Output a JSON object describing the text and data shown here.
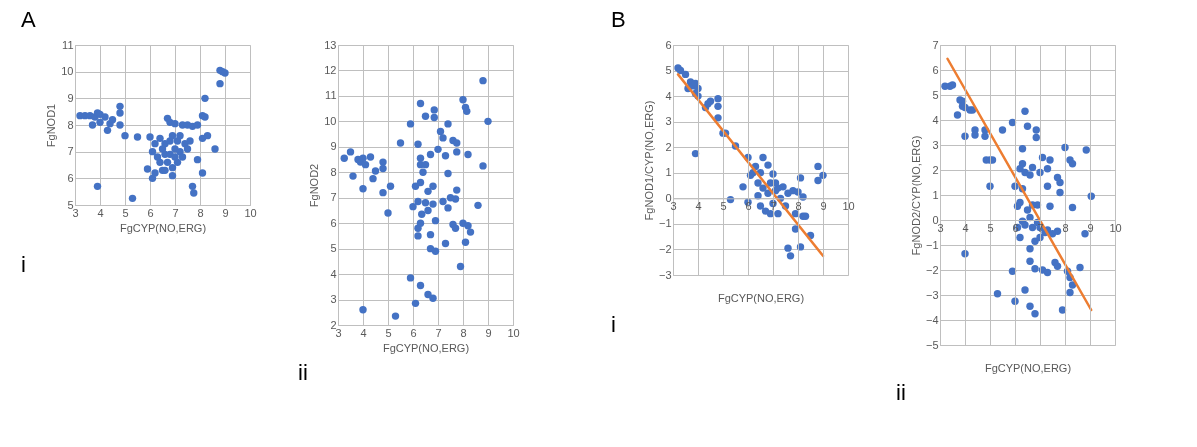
{
  "chart_data": [
    {
      "type": "scatter",
      "xlabel": "FgCYP(NO,ERG)",
      "ylabel": "FgNOD1",
      "xlim": [
        3,
        10
      ],
      "xticks": [
        3,
        4,
        5,
        6,
        7,
        8,
        9,
        10
      ],
      "ylim": [
        5,
        11
      ],
      "yticks": [
        5,
        6,
        7,
        8,
        9,
        10,
        11
      ],
      "grid": true,
      "annotations": [
        "A",
        "i"
      ],
      "series": [
        {
          "color": "#4472c4",
          "marker": "circle",
          "x": [
            3.2,
            3.4,
            3.6,
            3.8,
            3.9,
            4.0,
            3.7,
            4.0,
            4.2,
            4.3,
            4.4,
            4.5,
            4.8,
            4.8,
            4.8,
            5.0,
            5.5,
            6.0,
            3.9,
            5.3,
            5.9,
            6.1,
            6.2,
            6.1,
            6.2,
            6.3,
            6.4,
            6.4,
            6.5,
            6.5,
            6.6,
            6.6,
            6.7,
            6.8,
            6.7,
            6.8,
            6.8,
            6.9,
            6.9,
            7.0,
            7.0,
            7.0,
            7.1,
            7.1,
            7.2,
            7.2,
            7.3,
            7.3,
            7.4,
            7.5,
            7.5,
            7.6,
            7.7,
            7.7,
            7.75,
            7.9,
            7.9,
            8.1,
            8.1,
            8.1,
            8.2,
            8.3,
            8.2,
            8.6,
            8.8,
            8.8,
            8.9,
            9.0,
            6.6,
            6.9
          ],
          "values": [
            8.35,
            8.35,
            8.35,
            8.3,
            8.45,
            8.4,
            8.0,
            8.1,
            8.3,
            7.8,
            8.05,
            8.2,
            8.7,
            8.45,
            8.0,
            7.6,
            7.55,
            7.55,
            5.7,
            5.25,
            6.35,
            6.0,
            6.2,
            7.0,
            7.3,
            6.8,
            7.5,
            6.6,
            7.1,
            6.3,
            6.9,
            7.3,
            8.25,
            8.1,
            6.6,
            7.4,
            6.9,
            7.6,
            6.4,
            7.1,
            8.05,
            6.8,
            7.4,
            6.6,
            7.6,
            7.0,
            8.0,
            6.8,
            7.3,
            7.1,
            8.0,
            7.4,
            7.95,
            5.7,
            5.45,
            6.7,
            8.0,
            7.5,
            6.2,
            8.35,
            9.0,
            7.6,
            8.3,
            7.1,
            9.55,
            10.05,
            10.0,
            9.95,
            6.3,
            6.1
          ]
        }
      ]
    },
    {
      "type": "scatter",
      "xlabel": "FgCYP(NO,ERG)",
      "ylabel": "FgNOD2",
      "xlim": [
        3,
        10
      ],
      "xticks": [
        3,
        4,
        5,
        6,
        7,
        8,
        9,
        10
      ],
      "ylim": [
        2,
        13
      ],
      "yticks": [
        2,
        3,
        4,
        5,
        6,
        7,
        8,
        9,
        10,
        11,
        12,
        13
      ],
      "grid": true,
      "annotations": [
        "ii"
      ],
      "series": [
        {
          "color": "#4472c4",
          "marker": "circle",
          "x": [
            3.25,
            3.5,
            3.8,
            3.9,
            4.0,
            4.1,
            4.3,
            3.6,
            4.0,
            4.4,
            4.5,
            4.8,
            4.8,
            4.8,
            5.1,
            5.0,
            5.5,
            5.9,
            6.3,
            6.5,
            6.85,
            6.85,
            6.2,
            6.3,
            6.3,
            6.4,
            6.5,
            6.7,
            6.1,
            6.3,
            6.6,
            6.8,
            6.0,
            6.2,
            6.35,
            6.5,
            6.6,
            6.8,
            6.9,
            7.0,
            7.1,
            7.2,
            7.4,
            7.3,
            7.4,
            7.2,
            7.4,
            7.5,
            7.7,
            7.75,
            7.6,
            7.75,
            7.75,
            8.2,
            8.0,
            8.1,
            8.15,
            8.8,
            9.0,
            8.8,
            8.6,
            7.6,
            7.7,
            8.0,
            8.2,
            8.3,
            8.1,
            7.3,
            6.7,
            6.7,
            6.9,
            6.2,
            6.2,
            6.3,
            7.9,
            5.9,
            6.3,
            6.6,
            6.8,
            6.1,
            4.0,
            5.3
          ],
          "values": [
            8.55,
            8.8,
            8.5,
            8.4,
            8.55,
            8.3,
            8.6,
            7.85,
            7.35,
            7.75,
            8.05,
            8.4,
            8.15,
            7.2,
            7.45,
            6.4,
            9.15,
            9.9,
            10.7,
            10.2,
            10.45,
            10.15,
            9.1,
            8.55,
            8.3,
            8.0,
            8.3,
            8.7,
            7.45,
            7.6,
            7.25,
            7.45,
            6.65,
            6.85,
            6.35,
            6.8,
            6.5,
            6.75,
            6.1,
            8.9,
            9.6,
            9.35,
            9.9,
            8.65,
            7.95,
            6.85,
            6.6,
            7.0,
            6.95,
            7.3,
            9.25,
            9.15,
            8.8,
            8.7,
            10.85,
            10.55,
            10.4,
            11.6,
            10.0,
            8.25,
            6.7,
            5.95,
            5.8,
            6.0,
            5.9,
            5.65,
            5.25,
            5.2,
            5.55,
            5.0,
            4.9,
            5.5,
            5.8,
            6.0,
            4.3,
            3.85,
            3.55,
            3.2,
            3.05,
            2.85,
            2.6,
            2.35
          ]
        }
      ]
    },
    {
      "type": "scatter",
      "xlabel": "FgCYP(NO,ERG)",
      "ylabel": "FgNOD1/CYP(NO,ERG)",
      "xlim": [
        3,
        10
      ],
      "xticks": [
        3,
        4,
        5,
        6,
        7,
        8,
        9,
        10
      ],
      "ylim": [
        -3,
        6
      ],
      "yticks": [
        -3,
        -2,
        -1,
        0,
        1,
        2,
        3,
        4,
        5,
        6
      ],
      "grid": true,
      "annotations": [
        "B",
        "i"
      ],
      "series": [
        {
          "color": "#4472c4",
          "marker": "circle",
          "x": [
            3.2,
            3.3,
            3.5,
            3.7,
            3.6,
            3.8,
            3.9,
            4.0,
            3.9,
            4.0,
            4.3,
            4.4,
            4.5,
            4.8,
            4.8,
            4.8,
            5.0,
            5.1,
            5.5,
            6.0,
            3.9,
            5.3,
            5.8,
            6.0,
            6.1,
            6.2,
            6.3,
            6.4,
            6.5,
            6.4,
            6.5,
            6.6,
            6.6,
            6.8,
            6.8,
            6.7,
            6.9,
            7.0,
            7.0,
            7.1,
            7.2,
            7.2,
            7.3,
            7.4,
            7.5,
            7.6,
            7.8,
            7.9,
            8.0,
            8.1,
            8.2,
            8.2,
            8.3,
            7.9,
            8.1,
            8.5,
            7.6,
            7.7,
            8.8,
            8.8,
            9.0,
            6.9,
            7.1
          ],
          "values": [
            5.1,
            5.0,
            4.85,
            4.55,
            4.3,
            4.4,
            4.5,
            4.3,
            4.1,
            4.0,
            3.55,
            3.7,
            3.8,
            3.9,
            3.6,
            3.15,
            2.55,
            2.55,
            2.05,
            1.6,
            1.75,
            -0.05,
            0.45,
            -0.15,
            0.9,
            1.0,
            1.25,
            0.6,
            1.0,
            0.1,
            -0.3,
            0.4,
            1.6,
            1.3,
            0.2,
            -0.5,
            0.6,
            0.95,
            -0.2,
            0.3,
            -0.6,
            0.4,
            0.0,
            0.45,
            -0.3,
            0.2,
            0.3,
            -0.6,
            0.25,
            0.8,
            0.05,
            -0.7,
            -0.7,
            -1.2,
            -1.9,
            -1.45,
            -1.95,
            -2.25,
            0.7,
            1.25,
            0.9,
            -0.6,
            0.6
          ]
        },
        {
          "type": "line",
          "color": "#ed7d31",
          "x": [
            3.2,
            9.0
          ],
          "values": [
            4.85,
            -2.25
          ]
        }
      ]
    },
    {
      "type": "scatter",
      "xlabel": "FgCYP(NO,ERG)",
      "ylabel": "FgNOD2/CYP(NO,ERG)",
      "xlim": [
        3,
        10
      ],
      "xticks": [
        3,
        4,
        5,
        6,
        7,
        8,
        9,
        10
      ],
      "ylim": [
        -5,
        7
      ],
      "yticks": [
        -5,
        -4,
        -3,
        -2,
        -1,
        0,
        1,
        2,
        3,
        4,
        5,
        6,
        7
      ],
      "grid": true,
      "annotations": [
        "ii"
      ],
      "series": [
        {
          "color": "#4472c4",
          "marker": "circle",
          "x": [
            3.2,
            3.4,
            3.5,
            3.8,
            3.9,
            3.9,
            4.0,
            3.7,
            4.2,
            4.3,
            4.4,
            4.4,
            4.0,
            4.8,
            4.8,
            4.85,
            5.0,
            5.1,
            5.0,
            5.5,
            5.9,
            6.4,
            6.5,
            6.85,
            6.85,
            6.3,
            6.3,
            6.2,
            6.4,
            6.6,
            6.7,
            7.0,
            7.1,
            7.3,
            7.4,
            7.3,
            7.7,
            7.8,
            7.8,
            7.4,
            8.0,
            8.2,
            8.3,
            8.3,
            8.85,
            9.05,
            6.0,
            6.3,
            6.1,
            6.2,
            6.5,
            6.7,
            6.9,
            6.1,
            6.3,
            6.4,
            6.6,
            6.7,
            6.9,
            7.0,
            7.2,
            7.3,
            7.5,
            7.7,
            6.2,
            6.8,
            7.0,
            8.8,
            4.0,
            6.6,
            6.6,
            6.8,
            7.1,
            7.3,
            7.6,
            7.7,
            8.1,
            8.2,
            8.3,
            8.2,
            8.6,
            5.9,
            6.4,
            5.3,
            6.0,
            6.6,
            6.8,
            7.9
          ],
          "values": [
            5.35,
            5.35,
            5.4,
            4.8,
            4.75,
            4.55,
            4.5,
            4.2,
            4.4,
            4.4,
            3.6,
            3.4,
            3.35,
            3.6,
            3.35,
            2.4,
            2.4,
            2.4,
            1.35,
            3.6,
            3.9,
            4.35,
            3.75,
            3.6,
            3.3,
            2.85,
            2.25,
            2.05,
            1.9,
            1.8,
            2.1,
            1.9,
            2.5,
            2.05,
            2.4,
            1.35,
            1.7,
            1.5,
            1.1,
            0.55,
            2.9,
            2.4,
            2.25,
            0.5,
            2.8,
            0.95,
            1.35,
            1.25,
            0.55,
            0.7,
            0.4,
            0.6,
            0.6,
            -0.3,
            -0.05,
            -0.2,
            0.1,
            -0.3,
            -0.1,
            -0.3,
            -0.5,
            -0.4,
            -0.55,
            -0.45,
            -0.7,
            -0.85,
            -0.7,
            -0.55,
            -1.35,
            -1.15,
            -1.65,
            -1.95,
            -2.0,
            -2.1,
            -1.7,
            -1.85,
            -2.05,
            -2.3,
            -2.6,
            -2.9,
            -1.9,
            -2.05,
            -2.8,
            -2.95,
            -3.25,
            -3.45,
            -3.75,
            -3.6
          ]
        },
        {
          "type": "line",
          "color": "#ed7d31",
          "x": [
            3.3,
            9.05
          ],
          "values": [
            6.45,
            -3.6
          ]
        }
      ]
    }
  ]
}
